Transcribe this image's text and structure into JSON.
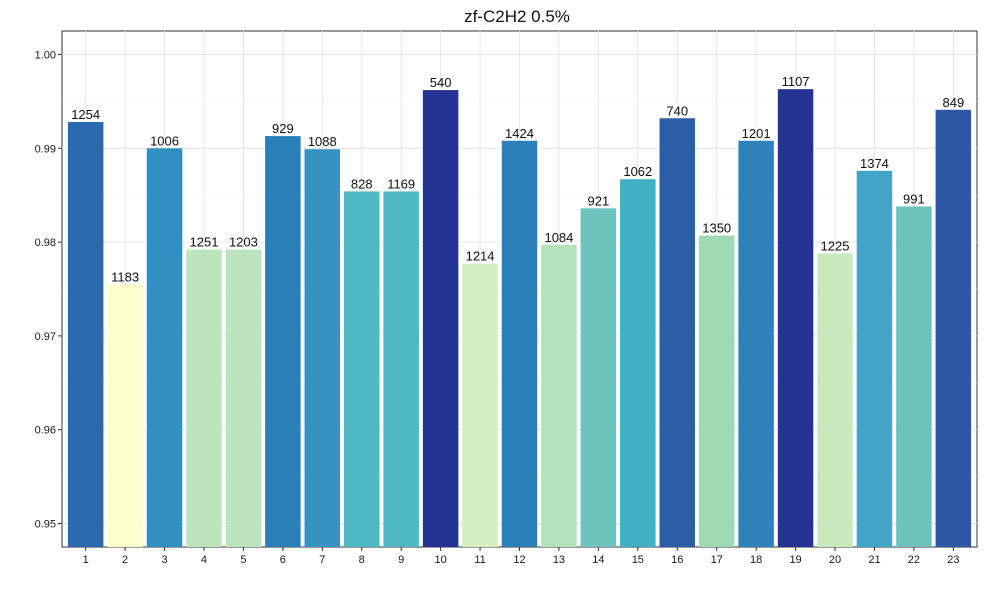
{
  "chart_data": {
    "type": "bar",
    "title": "zf-C2H2 0.5%",
    "xlabel": "",
    "ylabel": "",
    "categories": [
      "1",
      "2",
      "3",
      "4",
      "5",
      "6",
      "7",
      "8",
      "9",
      "10",
      "11",
      "12",
      "13",
      "14",
      "15",
      "16",
      "17",
      "18",
      "19",
      "20",
      "21",
      "22",
      "23"
    ],
    "values": [
      0.9928,
      0.9755,
      0.99,
      0.9792,
      0.9792,
      0.9913,
      0.9899,
      0.9854,
      0.9854,
      0.9962,
      0.9777,
      0.9908,
      0.9797,
      0.9836,
      0.9867,
      0.9932,
      0.9807,
      0.9908,
      0.9963,
      0.9788,
      0.9876,
      0.9838,
      0.9941
    ],
    "data_labels": [
      "1254",
      "1183",
      "1006",
      "1251",
      "1203",
      "929",
      "1088",
      "828",
      "1169",
      "540",
      "1214",
      "1424",
      "1084",
      "921",
      "1062",
      "740",
      "1350",
      "1201",
      "1107",
      "1225",
      "1374",
      "991",
      "849"
    ],
    "ylim": [
      0.9475,
      1.0025
    ],
    "yticks": [
      0.95,
      0.96,
      0.97,
      0.98,
      0.99,
      1.0
    ],
    "ytick_labels": [
      "0.95",
      "0.96",
      "0.97",
      "0.98",
      "0.99",
      "1.00"
    ],
    "grid": true,
    "legend": "none",
    "bar_colors": [
      "#2c6ab0",
      "#ffffcc",
      "#3190c0",
      "#bde5bd",
      "#bde5bd",
      "#2b7fb8",
      "#3592c1",
      "#4fb8c2",
      "#4fb8c2",
      "#253494",
      "#d6efc2",
      "#2c80b9",
      "#b4e1ba",
      "#6dc3be",
      "#41b0c5",
      "#2c5ea8",
      "#a0dab4",
      "#2f82ba",
      "#253494",
      "#c8e9be",
      "#42a5c8",
      "#6cc3be",
      "#2d57a4"
    ]
  }
}
